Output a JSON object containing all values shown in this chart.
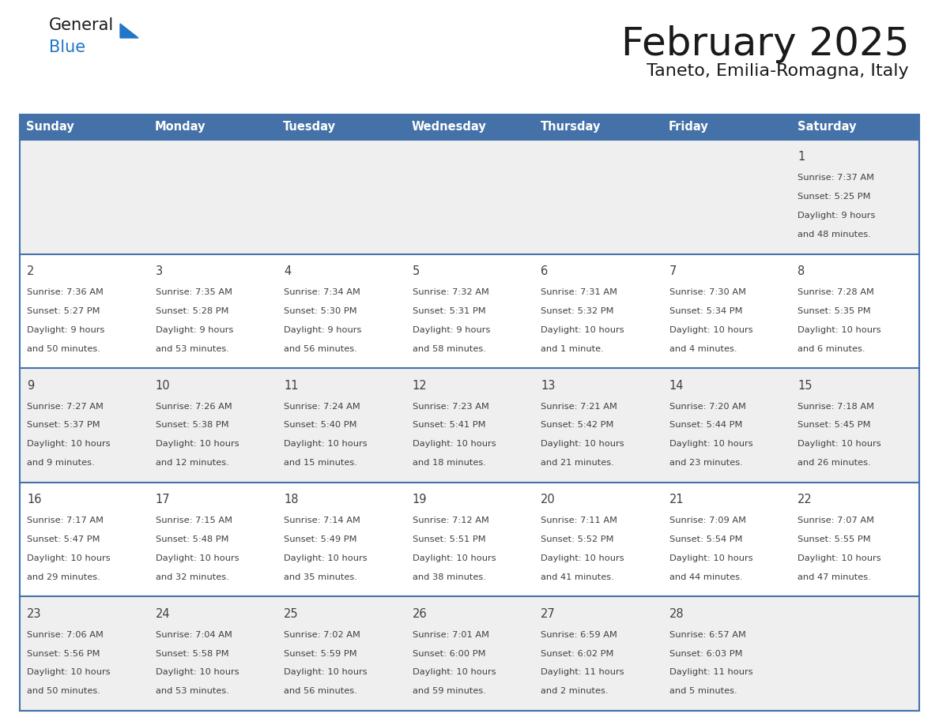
{
  "title": "February 2025",
  "subtitle": "Taneto, Emilia-Romagna, Italy",
  "header_bg": "#4472a8",
  "header_text": "#ffffff",
  "cell_bg_light": "#efefef",
  "cell_bg_white": "#ffffff",
  "separator_color": "#4472a8",
  "text_color": "#404040",
  "days_of_week": [
    "Sunday",
    "Monday",
    "Tuesday",
    "Wednesday",
    "Thursday",
    "Friday",
    "Saturday"
  ],
  "calendar_data": [
    [
      null,
      null,
      null,
      null,
      null,
      null,
      {
        "day": "1",
        "sunrise": "7:37 AM",
        "sunset": "5:25 PM",
        "daylight": "9 hours and 48 minutes."
      }
    ],
    [
      {
        "day": "2",
        "sunrise": "7:36 AM",
        "sunset": "5:27 PM",
        "daylight": "9 hours and 50 minutes."
      },
      {
        "day": "3",
        "sunrise": "7:35 AM",
        "sunset": "5:28 PM",
        "daylight": "9 hours and 53 minutes."
      },
      {
        "day": "4",
        "sunrise": "7:34 AM",
        "sunset": "5:30 PM",
        "daylight": "9 hours and 56 minutes."
      },
      {
        "day": "5",
        "sunrise": "7:32 AM",
        "sunset": "5:31 PM",
        "daylight": "9 hours and 58 minutes."
      },
      {
        "day": "6",
        "sunrise": "7:31 AM",
        "sunset": "5:32 PM",
        "daylight": "10 hours and 1 minute."
      },
      {
        "day": "7",
        "sunrise": "7:30 AM",
        "sunset": "5:34 PM",
        "daylight": "10 hours and 4 minutes."
      },
      {
        "day": "8",
        "sunrise": "7:28 AM",
        "sunset": "5:35 PM",
        "daylight": "10 hours and 6 minutes."
      }
    ],
    [
      {
        "day": "9",
        "sunrise": "7:27 AM",
        "sunset": "5:37 PM",
        "daylight": "10 hours and 9 minutes."
      },
      {
        "day": "10",
        "sunrise": "7:26 AM",
        "sunset": "5:38 PM",
        "daylight": "10 hours and 12 minutes."
      },
      {
        "day": "11",
        "sunrise": "7:24 AM",
        "sunset": "5:40 PM",
        "daylight": "10 hours and 15 minutes."
      },
      {
        "day": "12",
        "sunrise": "7:23 AM",
        "sunset": "5:41 PM",
        "daylight": "10 hours and 18 minutes."
      },
      {
        "day": "13",
        "sunrise": "7:21 AM",
        "sunset": "5:42 PM",
        "daylight": "10 hours and 21 minutes."
      },
      {
        "day": "14",
        "sunrise": "7:20 AM",
        "sunset": "5:44 PM",
        "daylight": "10 hours and 23 minutes."
      },
      {
        "day": "15",
        "sunrise": "7:18 AM",
        "sunset": "5:45 PM",
        "daylight": "10 hours and 26 minutes."
      }
    ],
    [
      {
        "day": "16",
        "sunrise": "7:17 AM",
        "sunset": "5:47 PM",
        "daylight": "10 hours and 29 minutes."
      },
      {
        "day": "17",
        "sunrise": "7:15 AM",
        "sunset": "5:48 PM",
        "daylight": "10 hours and 32 minutes."
      },
      {
        "day": "18",
        "sunrise": "7:14 AM",
        "sunset": "5:49 PM",
        "daylight": "10 hours and 35 minutes."
      },
      {
        "day": "19",
        "sunrise": "7:12 AM",
        "sunset": "5:51 PM",
        "daylight": "10 hours and 38 minutes."
      },
      {
        "day": "20",
        "sunrise": "7:11 AM",
        "sunset": "5:52 PM",
        "daylight": "10 hours and 41 minutes."
      },
      {
        "day": "21",
        "sunrise": "7:09 AM",
        "sunset": "5:54 PM",
        "daylight": "10 hours and 44 minutes."
      },
      {
        "day": "22",
        "sunrise": "7:07 AM",
        "sunset": "5:55 PM",
        "daylight": "10 hours and 47 minutes."
      }
    ],
    [
      {
        "day": "23",
        "sunrise": "7:06 AM",
        "sunset": "5:56 PM",
        "daylight": "10 hours and 50 minutes."
      },
      {
        "day": "24",
        "sunrise": "7:04 AM",
        "sunset": "5:58 PM",
        "daylight": "10 hours and 53 minutes."
      },
      {
        "day": "25",
        "sunrise": "7:02 AM",
        "sunset": "5:59 PM",
        "daylight": "10 hours and 56 minutes."
      },
      {
        "day": "26",
        "sunrise": "7:01 AM",
        "sunset": "6:00 PM",
        "daylight": "10 hours and 59 minutes."
      },
      {
        "day": "27",
        "sunrise": "6:59 AM",
        "sunset": "6:02 PM",
        "daylight": "11 hours and 2 minutes."
      },
      {
        "day": "28",
        "sunrise": "6:57 AM",
        "sunset": "6:03 PM",
        "daylight": "11 hours and 5 minutes."
      },
      null
    ]
  ]
}
